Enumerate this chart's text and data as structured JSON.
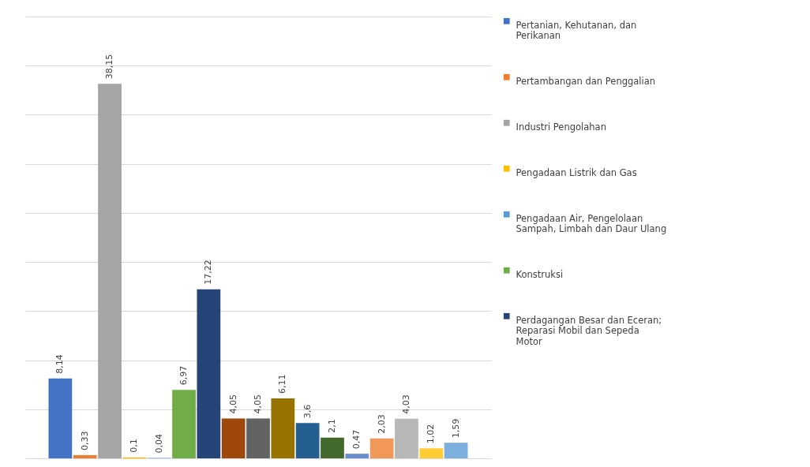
{
  "chart_data": {
    "type": "bar",
    "categories": [
      null
    ],
    "ylim": [
      0,
      45
    ],
    "yticks": [
      {
        "value": 0,
        "label": null
      },
      {
        "value": 5,
        "label": null
      },
      {
        "value": 10,
        "label": null
      },
      {
        "value": 15,
        "label": null
      },
      {
        "value": 20,
        "label": null
      },
      {
        "value": 25,
        "label": null
      },
      {
        "value": 30,
        "label": null
      },
      {
        "value": 35,
        "label": null
      },
      {
        "value": 40,
        "label": null
      },
      {
        "value": 45,
        "label": null
      }
    ],
    "grid": "y",
    "legend": "right",
    "series": [
      {
        "name": "Pertanian, Kehutanan, dan Perikanan",
        "color": "#4472c4",
        "values": [
          8.14
        ],
        "value_labels": [
          "8,14"
        ]
      },
      {
        "name": "Pertambangan dan Penggalian",
        "color": "#ed7d31",
        "values": [
          0.33
        ],
        "value_labels": [
          "0,33"
        ]
      },
      {
        "name": "Industri Pengolahan",
        "color": "#a5a5a5",
        "values": [
          38.15
        ],
        "value_labels": [
          "38,15"
        ]
      },
      {
        "name": "Pengadaan Listrik dan Gas",
        "color": "#ffc000",
        "values": [
          0.1
        ],
        "value_labels": [
          "0,1"
        ]
      },
      {
        "name": "Pengadaan Air, Pengelolaan Sampah, Limbah dan Daur Ulang",
        "color": "#5b9bd5",
        "values": [
          0.04
        ],
        "value_labels": [
          "0,04"
        ]
      },
      {
        "name": "Konstruksi",
        "color": "#70ad47",
        "values": [
          6.97
        ],
        "value_labels": [
          "6,97"
        ]
      },
      {
        "name": "Perdagangan Besar dan Eceran; Reparasi Mobil dan Sepeda Motor",
        "color": "#264478",
        "values": [
          17.22
        ],
        "value_labels": [
          "17,22"
        ]
      },
      {
        "color": "#9e480e",
        "values": [
          4.05
        ],
        "value_labels": [
          "4,05"
        ]
      },
      {
        "color": "#636363",
        "values": [
          4.05
        ],
        "value_labels": [
          "4,05"
        ]
      },
      {
        "color": "#997300",
        "values": [
          6.11
        ],
        "value_labels": [
          "6,11"
        ]
      },
      {
        "color": "#255e91",
        "values": [
          3.6
        ],
        "value_labels": [
          "3,6"
        ]
      },
      {
        "color": "#43682b",
        "values": [
          2.1
        ],
        "value_labels": [
          "2,1"
        ]
      },
      {
        "color": "#698ed0",
        "values": [
          0.47
        ],
        "value_labels": [
          "0,47"
        ]
      },
      {
        "color": "#f1975a",
        "values": [
          2.03
        ],
        "value_labels": [
          "2,03"
        ]
      },
      {
        "color": "#b7b7b7",
        "values": [
          4.03
        ],
        "value_labels": [
          "4,03"
        ]
      },
      {
        "color": "#ffcd33",
        "values": [
          1.02
        ],
        "value_labels": [
          "1,02"
        ]
      },
      {
        "color": "#7cafdd",
        "values": [
          1.59
        ],
        "value_labels": [
          "1,59"
        ]
      }
    ]
  }
}
